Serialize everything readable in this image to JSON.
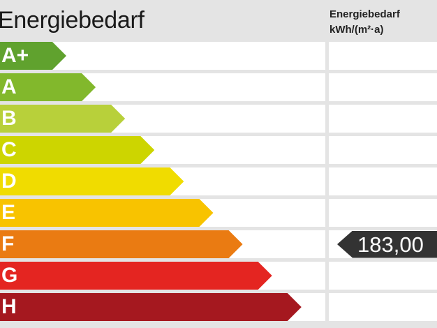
{
  "chart_data": {
    "type": "bar",
    "title": "Energiebedarf",
    "column_header": [
      "Energiebedarf",
      "kWh/(m²·a)"
    ],
    "categories": [
      "A+",
      "A",
      "B",
      "C",
      "D",
      "E",
      "F",
      "G",
      "H"
    ],
    "colors": [
      "#60a22e",
      "#82b82c",
      "#b8d03a",
      "#cdd500",
      "#f0dc00",
      "#f8c300",
      "#ea7b12",
      "#e42521",
      "#a5181f"
    ],
    "value": {
      "class": "F",
      "label": "183,00",
      "color": "#333333"
    }
  }
}
